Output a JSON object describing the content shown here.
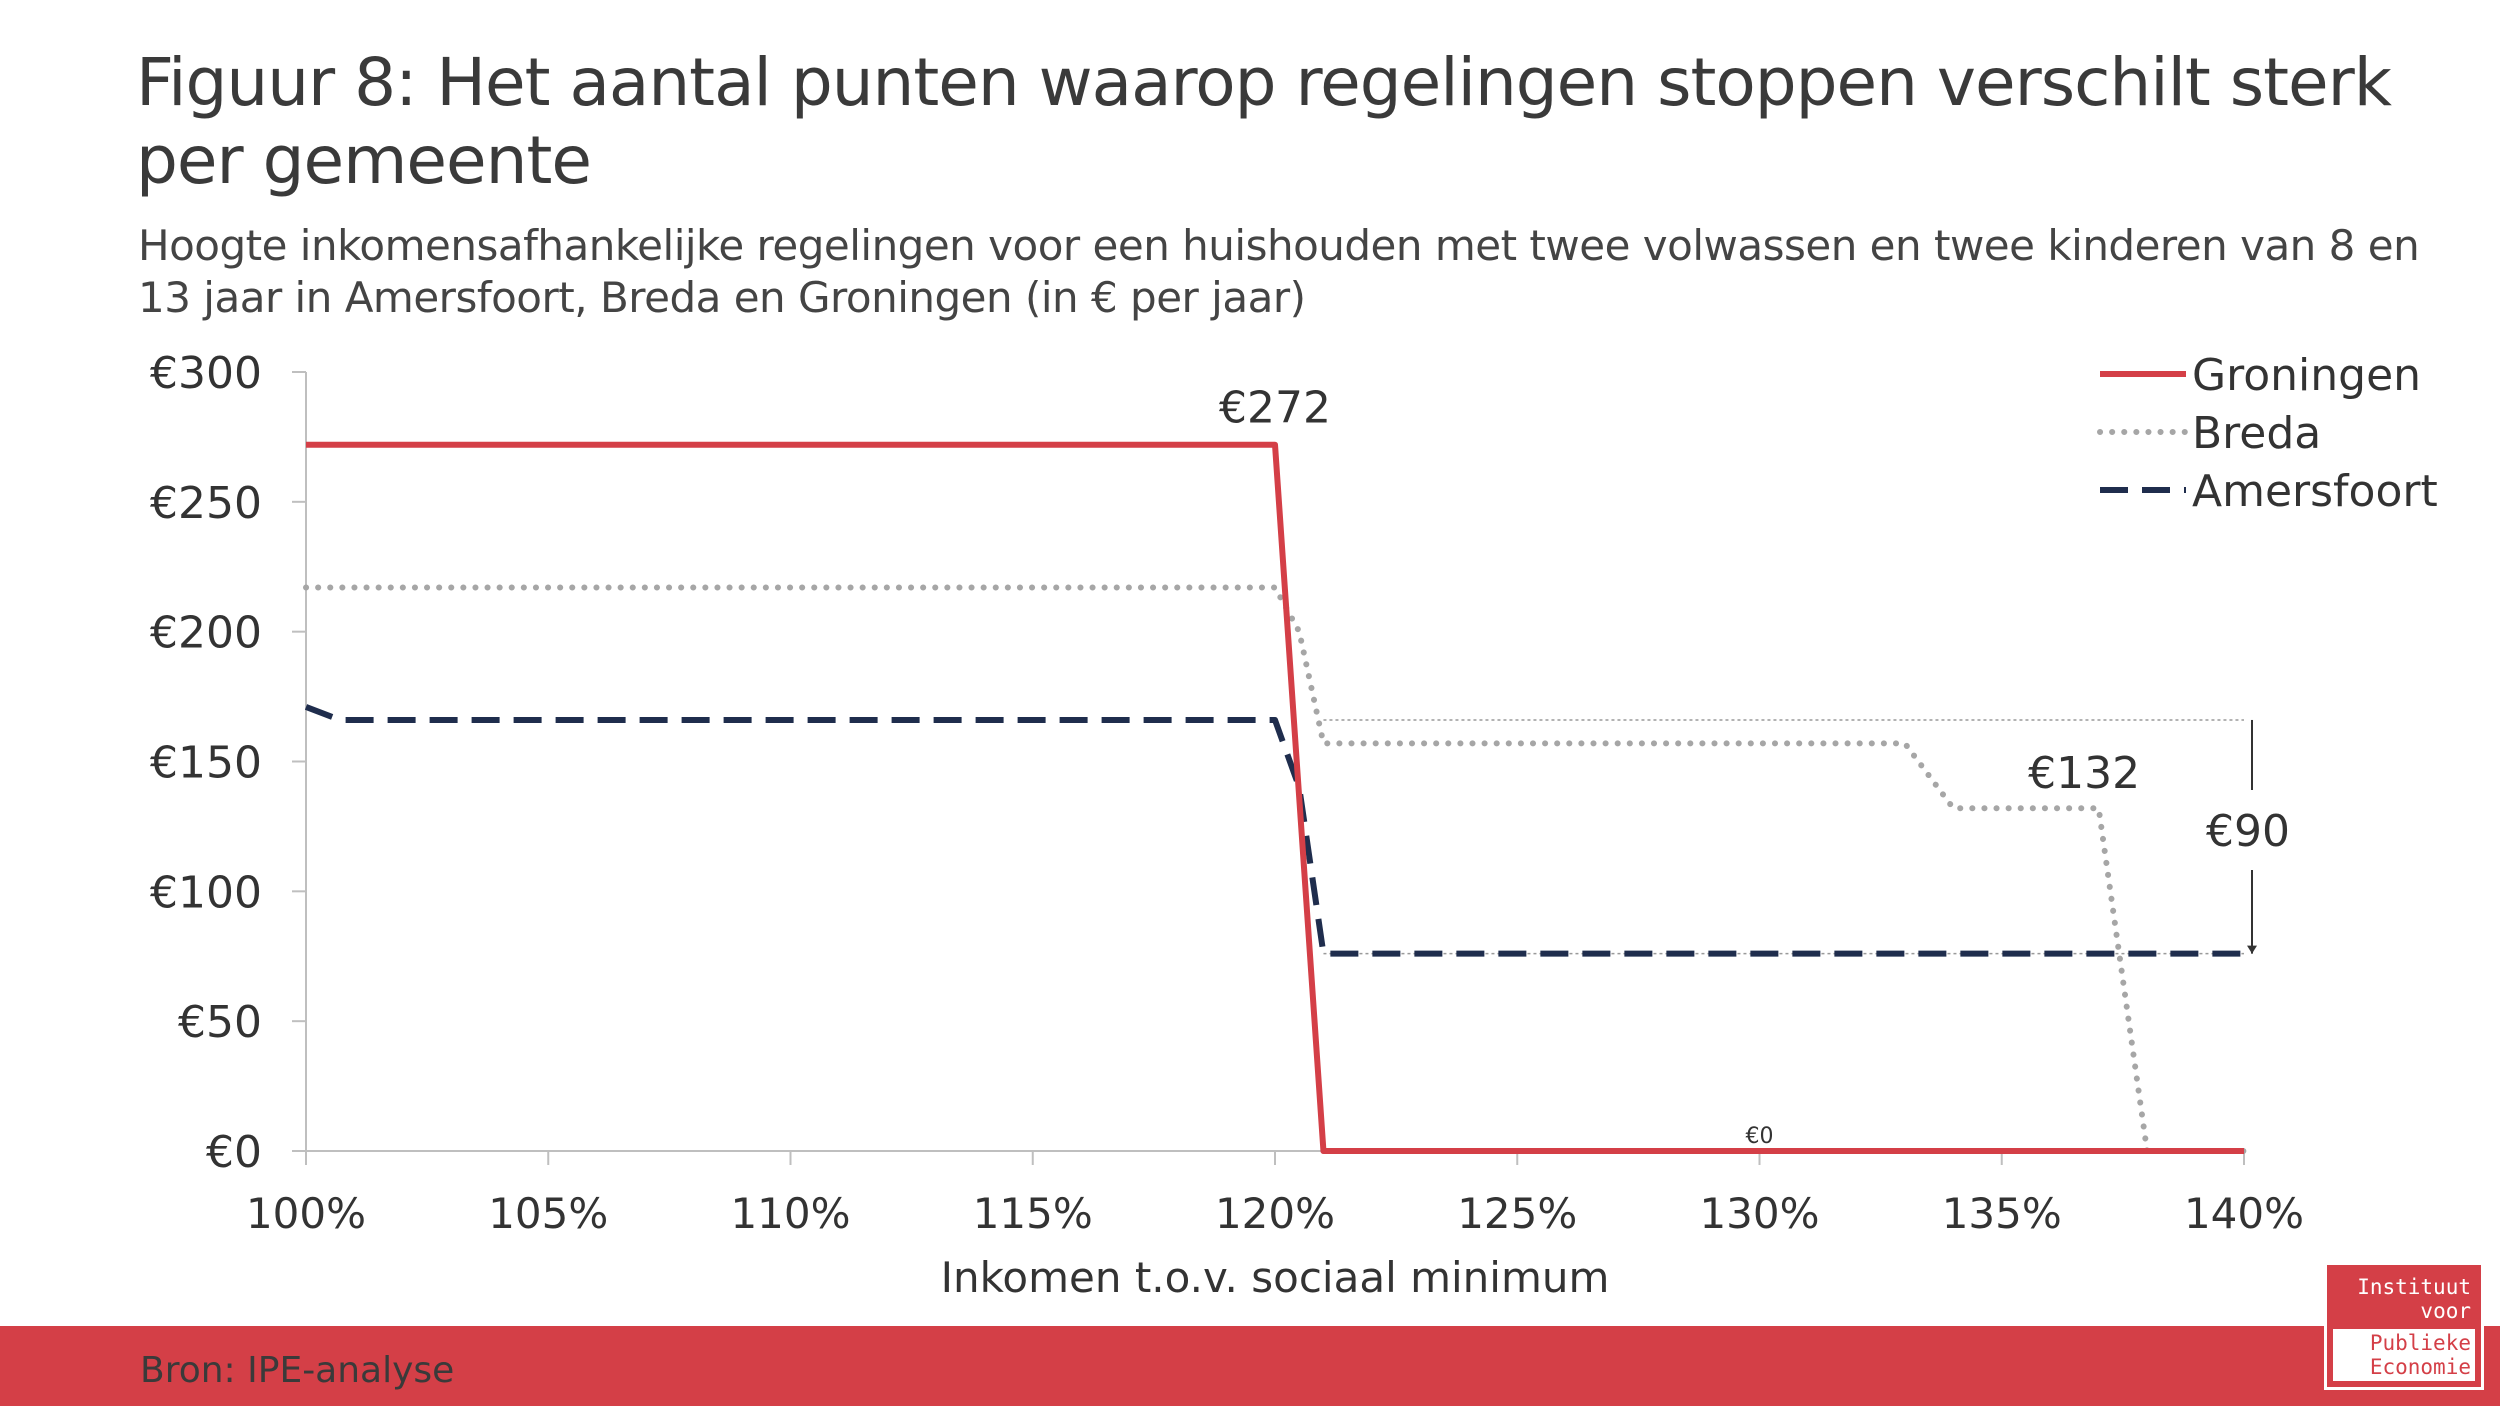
{
  "title": "Figuur 8: Het aantal punten waarop regelingen stoppen verschilt sterk per gemeente",
  "subtitle": "Hoogte inkomensafhankelijke regelingen voor een huishouden met twee volwassen en twee kinderen van 8 en 13 jaar in Amersfoort, Breda en Groningen (in € per jaar)",
  "source": "Bron: IPE-analyse",
  "logo": {
    "line1": "Instituut",
    "line2": "voor",
    "line3": "Publieke",
    "line4": "Economie"
  },
  "colors": {
    "groningen": "#d43f47",
    "breda": "#a6a6a6",
    "amersfoort": "#1f2d4d",
    "footer": "#d43f47"
  },
  "chart_data": {
    "type": "line",
    "xlabel": "Inkomen t.o.v. sociaal minimum",
    "ylabel": "",
    "xlim": [
      100,
      140
    ],
    "ylim": [
      0,
      300
    ],
    "x_ticks": [
      100,
      105,
      110,
      115,
      120,
      125,
      130,
      135,
      140
    ],
    "x_tick_labels": [
      "100%",
      "105%",
      "110%",
      "115%",
      "120%",
      "125%",
      "130%",
      "135%",
      "140%"
    ],
    "y_ticks": [
      0,
      50,
      100,
      150,
      200,
      250,
      300
    ],
    "y_tick_labels": [
      "€0",
      "€50",
      "€100",
      "€150",
      "€200",
      "€250",
      "€300"
    ],
    "legend_position": "top-right",
    "series": [
      {
        "name": "Groningen",
        "style": "solid",
        "x": [
          100,
          120,
          121,
          140
        ],
        "y": [
          272,
          272,
          0,
          0
        ]
      },
      {
        "name": "Breda",
        "style": "dotted",
        "x": [
          100,
          120,
          120.5,
          121,
          133,
          134,
          137,
          138,
          140
        ],
        "y": [
          217,
          217,
          200,
          157,
          157,
          132,
          132,
          0,
          0
        ]
      },
      {
        "name": "Amersfoort",
        "style": "dashed",
        "x": [
          100,
          100.7,
          120,
          120.5,
          121,
          140
        ],
        "y": [
          171,
          166,
          166,
          140,
          76,
          76
        ]
      }
    ],
    "annotations": [
      {
        "text": "€272",
        "x": 120,
        "y": 272
      },
      {
        "text": "€132",
        "x": 136.7,
        "y": 132
      },
      {
        "text": "€0",
        "x": 130,
        "y": 0
      },
      {
        "text": "€90",
        "x": 140,
        "y": 121
      }
    ],
    "reference_lines": [
      {
        "y": 166,
        "x_from": 121,
        "x_to": 140
      },
      {
        "y": 76,
        "x_from": 121,
        "x_to": 140
      }
    ]
  }
}
